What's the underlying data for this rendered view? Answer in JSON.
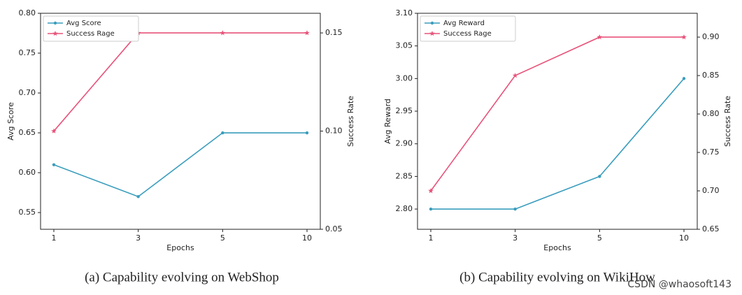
{
  "chart_data": [
    {
      "type": "line",
      "caption": "(a) Capability evolving on WebShop",
      "xlabel": "Epochs",
      "ylabel": "Avg Score",
      "y2label": "Success Rate",
      "categories": [
        "1",
        "3",
        "5",
        "10"
      ],
      "ylim": [
        0.529,
        0.8
      ],
      "yticks": [
        {
          "value": 0.55,
          "label": "0.55"
        },
        {
          "value": 0.6,
          "label": "0.60"
        },
        {
          "value": 0.65,
          "label": "0.65"
        },
        {
          "value": 0.7,
          "label": "0.70"
        },
        {
          "value": 0.75,
          "label": "0.75"
        },
        {
          "value": 0.8,
          "label": "0.80"
        }
      ],
      "y2lim": [
        0.05,
        0.16
      ],
      "y2ticks": [
        0.05,
        {
          "value": 0.1,
          "label": "0.10"
        },
        0.15
      ],
      "legend": "upper left",
      "series": [
        {
          "name": "Avg Score",
          "color": "#3a9dbd",
          "marker": "dot",
          "values": [
            0.61,
            0.57,
            0.65,
            0.65
          ]
        },
        {
          "name": "Success Rage",
          "color": "#e8537a",
          "marker": "star",
          "axis": "y2",
          "values": [
            0.1,
            0.15,
            0.15,
            0.15
          ]
        }
      ]
    },
    {
      "type": "line",
      "caption": "(b) Capability evolving on WikiHow",
      "xlabel": "Epochs",
      "ylabel": "Avg Reward",
      "y2label": "Success Rate",
      "categories": [
        "1",
        "3",
        "5",
        "10"
      ],
      "ylim": [
        2.769,
        3.1
      ],
      "yticks": [
        {
          "value": 2.8,
          "label": "2.80"
        },
        2.85,
        {
          "value": 2.9,
          "label": "2.90"
        },
        2.95,
        {
          "value": 3.0,
          "label": "3.00"
        },
        3.05,
        {
          "value": 3.1,
          "label": "3.10"
        }
      ],
      "y2lim": [
        0.65,
        0.931
      ],
      "y2ticks": [
        0.65,
        {
          "value": 0.7,
          "label": "0.70"
        },
        0.75,
        {
          "value": 0.8,
          "label": "0.80"
        },
        0.85,
        {
          "value": 0.9,
          "label": "0.90"
        }
      ],
      "legend": "upper left",
      "series": [
        {
          "name": "Avg Reward",
          "color": "#3a9dbd",
          "marker": "dot",
          "values": [
            2.8,
            2.8,
            2.85,
            3.0
          ]
        },
        {
          "name": "Success Rage",
          "color": "#e8537a",
          "marker": "star",
          "axis": "y2",
          "values": [
            0.7,
            0.85,
            0.9,
            0.9
          ]
        }
      ]
    }
  ],
  "watermark": "CSDN @whaosoft143"
}
